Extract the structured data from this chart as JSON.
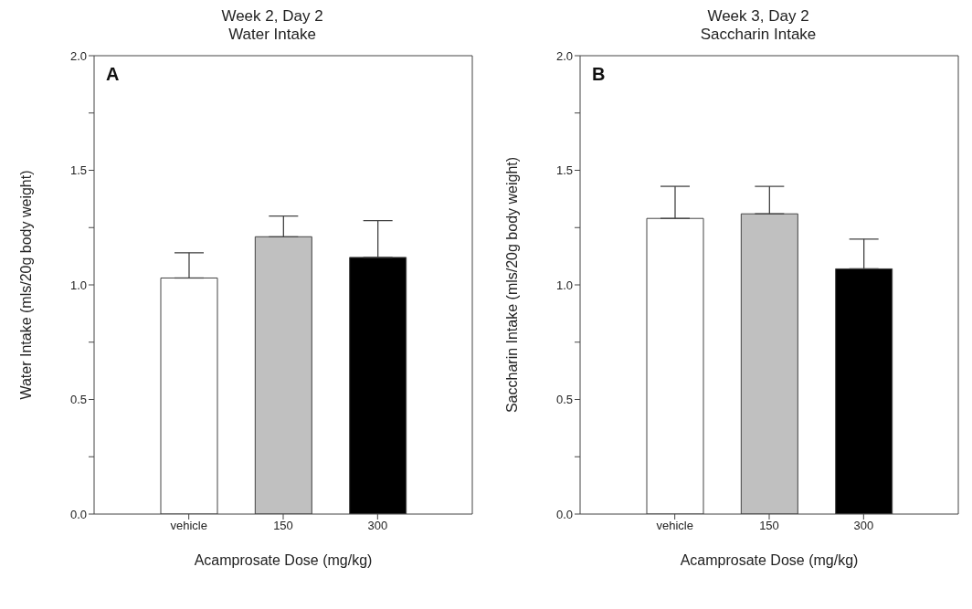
{
  "chart_data": [
    {
      "type": "bar",
      "title": "Week 2, Day 2",
      "subtitle": "Water Intake",
      "xlabel": "Acamprosate Dose (mg/kg)",
      "ylabel": "Water Intake (mls/20g body weight)",
      "annotations": [
        "A"
      ],
      "categories": [
        "vehicle",
        "150",
        "300"
      ],
      "values": [
        1.03,
        1.21,
        1.12
      ],
      "colors": [
        "#ffffff",
        "#c0c0c0",
        "#000000"
      ],
      "errors": [
        [
          1.03,
          1.14
        ],
        [
          1.21,
          1.3
        ],
        [
          1.12,
          1.28
        ]
      ],
      "ylim": [
        0,
        2
      ],
      "yticks": [
        {
          "value": 0,
          "label": "0.0"
        },
        {
          "value": 0.25,
          "label": null
        },
        {
          "value": 0.5,
          "label": "0.5"
        },
        {
          "value": 0.75,
          "label": null
        },
        {
          "value": 1,
          "label": "1.0"
        },
        {
          "value": 1.25,
          "label": null
        },
        {
          "value": 1.5,
          "label": "1.5"
        },
        {
          "value": 1.75,
          "label": null
        },
        {
          "value": 2,
          "label": "2.0"
        }
      ],
      "grid": false,
      "legend": false
    },
    {
      "type": "bar",
      "title": "Week 3, Day 2",
      "subtitle": "Saccharin Intake",
      "xlabel": "Acamprosate Dose (mg/kg)",
      "ylabel": "Saccharin Intake (mls/20g body weight)",
      "annotations": [
        "B"
      ],
      "categories": [
        "vehicle",
        "150",
        "300"
      ],
      "values": [
        1.29,
        1.31,
        1.07
      ],
      "colors": [
        "#ffffff",
        "#c0c0c0",
        "#000000"
      ],
      "errors": [
        [
          1.29,
          1.43
        ],
        [
          1.31,
          1.43
        ],
        [
          1.07,
          1.2
        ]
      ],
      "ylim": [
        0,
        2
      ],
      "yticks": [
        {
          "value": 0,
          "label": "0.0"
        },
        {
          "value": 0.25,
          "label": null
        },
        {
          "value": 0.5,
          "label": "0.5"
        },
        {
          "value": 0.75,
          "label": null
        },
        {
          "value": 1,
          "label": "1.0"
        },
        {
          "value": 1.25,
          "label": null
        },
        {
          "value": 1.5,
          "label": "1.5"
        },
        {
          "value": 1.75,
          "label": null
        },
        {
          "value": 2,
          "label": "2.0"
        }
      ],
      "grid": false,
      "legend": false
    }
  ]
}
